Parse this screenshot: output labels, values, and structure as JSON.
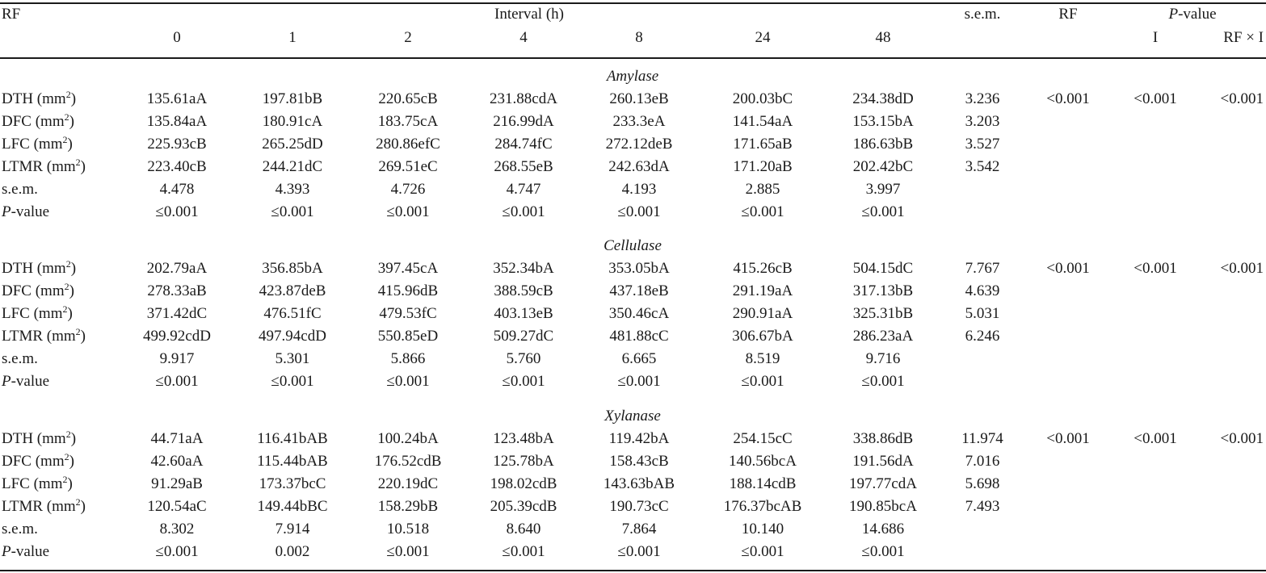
{
  "header": {
    "rf": "RF",
    "interval": "Interval (h)",
    "sem": "s.e.m.",
    "rf_col": "RF",
    "pvalue_italic": "P",
    "pvalue_rest": "-value",
    "i": "I",
    "rf_x_i": "RF × I",
    "hours": [
      "0",
      "1",
      "2",
      "4",
      "8",
      "24",
      "48"
    ]
  },
  "sections": [
    {
      "title": "Amylase",
      "rows": [
        {
          "label": "DTH (mm",
          "sup": "2",
          "close": ")",
          "values": [
            "135.61aA",
            "197.81bB",
            "220.65cB",
            "231.88cdA",
            "260.13eB",
            "200.03bC",
            "234.38dD"
          ],
          "sem": "3.236",
          "p_rf": "<0.001",
          "p_i": "<0.001",
          "p_rfxi": "<0.001"
        },
        {
          "label": "DFC (mm",
          "sup": "2",
          "close": ")",
          "values": [
            "135.84aA",
            "180.91cA",
            "183.75cA",
            "216.99dA",
            "233.3eA",
            "141.54aA",
            "153.15bA"
          ],
          "sem": "3.203"
        },
        {
          "label": "LFC (mm",
          "sup": "2",
          "close": ")",
          "values": [
            "225.93cB",
            "265.25dD",
            "280.86efC",
            "284.74fC",
            "272.12deB",
            "171.65aB",
            "186.63bB"
          ],
          "sem": "3.527"
        },
        {
          "label": "LTMR (mm",
          "sup": "2",
          "close": ")",
          "values": [
            "223.40cB",
            "244.21dC",
            "269.51eC",
            "268.55eB",
            "242.63dA",
            "171.20aB",
            "202.42bC"
          ],
          "sem": "3.542"
        }
      ],
      "sem_row": {
        "label": "s.e.m.",
        "values": [
          "4.478",
          "4.393",
          "4.726",
          "4.747",
          "4.193",
          "2.885",
          "3.997"
        ]
      },
      "p_row": {
        "label_italic": "P",
        "label_rest": "-value",
        "values": [
          "≤0.001",
          "≤0.001",
          "≤0.001",
          "≤0.001",
          "≤0.001",
          "≤0.001",
          "≤0.001"
        ]
      }
    },
    {
      "title": "Cellulase",
      "rows": [
        {
          "label": "DTH (mm",
          "sup": "2",
          "close": ")",
          "values": [
            "202.79aA",
            "356.85bA",
            "397.45cA",
            "352.34bA",
            "353.05bA",
            "415.26cB",
            "504.15dC"
          ],
          "sem": "7.767",
          "p_rf": "<0.001",
          "p_i": "<0.001",
          "p_rfxi": "<0.001"
        },
        {
          "label": "DFC (mm",
          "sup": "2",
          "close": ")",
          "values": [
            "278.33aB",
            "423.87deB",
            "415.96dB",
            "388.59cB",
            "437.18eB",
            "291.19aA",
            "317.13bB"
          ],
          "sem": "4.639"
        },
        {
          "label": "LFC (mm",
          "sup": "2",
          "close": ")",
          "values": [
            "371.42dC",
            "476.51fC",
            "479.53fC",
            "403.13eB",
            "350.46cA",
            "290.91aA",
            "325.31bB"
          ],
          "sem": "5.031"
        },
        {
          "label": "LTMR (mm",
          "sup": "2",
          "close": ")",
          "values": [
            "499.92cdD",
            "497.94cdD",
            "550.85eD",
            "509.27dC",
            "481.88cC",
            "306.67bA",
            "286.23aA"
          ],
          "sem": "6.246"
        }
      ],
      "sem_row": {
        "label": "s.e.m.",
        "values": [
          "9.917",
          "5.301",
          "5.866",
          "5.760",
          "6.665",
          "8.519",
          "9.716"
        ]
      },
      "p_row": {
        "label_italic": "P",
        "label_rest": "-value",
        "values": [
          "≤0.001",
          "≤0.001",
          "≤0.001",
          "≤0.001",
          "≤0.001",
          "≤0.001",
          "≤0.001"
        ]
      }
    },
    {
      "title": "Xylanase",
      "rows": [
        {
          "label": "DTH (mm",
          "sup": "2",
          "close": ")",
          "values": [
            "44.71aA",
            "116.41bAB",
            "100.24bA",
            "123.48bA",
            "119.42bA",
            "254.15cC",
            "338.86dB"
          ],
          "sem": "11.974",
          "p_rf": "<0.001",
          "p_i": "<0.001",
          "p_rfxi": "<0.001"
        },
        {
          "label": "DFC (mm",
          "sup": "2",
          "close": ")",
          "values": [
            "42.60aA",
            "115.44bAB",
            "176.52cdB",
            "125.78bA",
            "158.43cB",
            "140.56bcA",
            "191.56dA"
          ],
          "sem": "7.016"
        },
        {
          "label": "LFC (mm",
          "sup": "2",
          "close": ")",
          "values": [
            "91.29aB",
            "173.37bcC",
            "220.19dC",
            "198.02cdB",
            "143.63bAB",
            "188.14cdB",
            "197.77cdA"
          ],
          "sem": "5.698"
        },
        {
          "label": "LTMR (mm",
          "sup": "2",
          "close": ")",
          "values": [
            "120.54aC",
            "149.44bBC",
            "158.29bB",
            "205.39cdB",
            "190.73cC",
            "176.37bcAB",
            "190.85bcA"
          ],
          "sem": "7.493"
        }
      ],
      "sem_row": {
        "label": "s.e.m.",
        "values": [
          "8.302",
          "7.914",
          "10.518",
          "8.640",
          "7.864",
          "10.140",
          "14.686"
        ]
      },
      "p_row": {
        "label_italic": "P",
        "label_rest": "-value",
        "values": [
          "≤0.001",
          "0.002",
          "≤0.001",
          "≤0.001",
          "≤0.001",
          "≤0.001",
          "≤0.001"
        ]
      }
    }
  ]
}
